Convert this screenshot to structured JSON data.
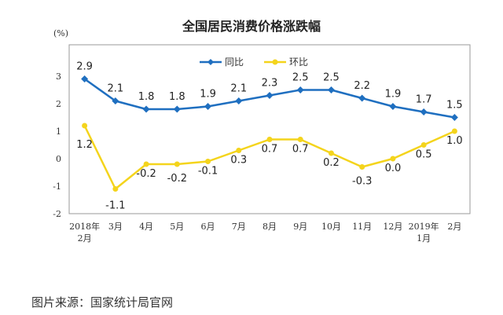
{
  "chart_data": {
    "type": "line",
    "title": "全国居民消费价格涨跌幅",
    "ylabel": "(%)",
    "categories": [
      "2018年\n2月",
      "3月",
      "4月",
      "5月",
      "6月",
      "7月",
      "8月",
      "9月",
      "10月",
      "11月",
      "12月",
      "2019年\n1月",
      "2月"
    ],
    "ylim": [
      -2,
      3
    ],
    "yticks": [
      -2,
      -1,
      0,
      1,
      2,
      3
    ],
    "legend_position": "top-center",
    "series": [
      {
        "name": "同比",
        "color": "#1f6fc0",
        "values": [
          2.9,
          2.1,
          1.8,
          1.8,
          1.9,
          2.1,
          2.3,
          2.5,
          2.5,
          2.2,
          1.9,
          1.7,
          1.5
        ]
      },
      {
        "name": "环比",
        "color": "#f4d41c",
        "values": [
          1.2,
          -1.1,
          -0.2,
          -0.2,
          -0.1,
          0.3,
          0.7,
          0.7,
          0.2,
          -0.3,
          0.0,
          0.5,
          1.0
        ]
      }
    ]
  },
  "source_text": "图片来源：国家统计局官网"
}
